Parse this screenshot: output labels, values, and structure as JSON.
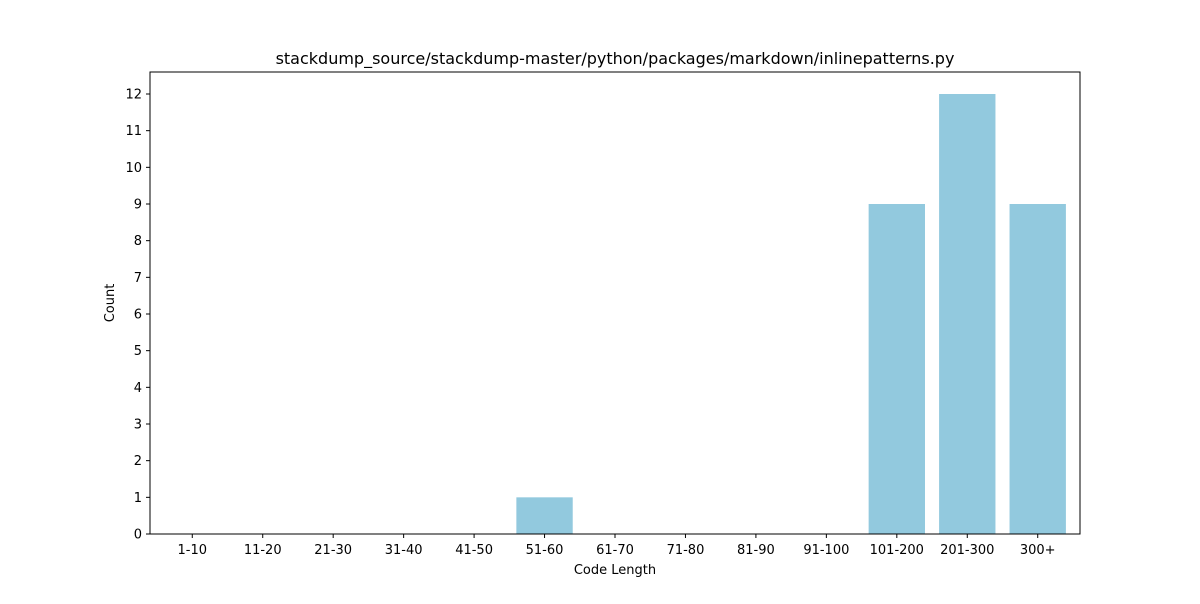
{
  "chart_data": {
    "type": "bar",
    "title": "stackdump_source/stackdump-master/python/packages/markdown/inlinepatterns.py",
    "xlabel": "Code Length",
    "ylabel": "Count",
    "categories": [
      "1-10",
      "11-20",
      "21-30",
      "31-40",
      "41-50",
      "51-60",
      "61-70",
      "71-80",
      "81-90",
      "91-100",
      "101-200",
      "201-300",
      "300+"
    ],
    "values": [
      0,
      0,
      0,
      0,
      0,
      1,
      0,
      0,
      0,
      0,
      9,
      12,
      9
    ],
    "ylim": [
      0,
      12.6
    ],
    "yticks": [
      0,
      1,
      2,
      3,
      4,
      5,
      6,
      7,
      8,
      9,
      10,
      11,
      12
    ],
    "grid": false,
    "bar_color": "#92c9de"
  }
}
